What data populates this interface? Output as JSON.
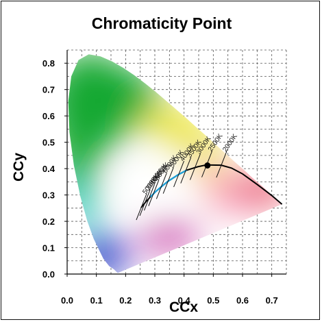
{
  "chart_data": {
    "type": "scatter",
    "title": "Chromaticity Point",
    "xlabel": "CCx",
    "ylabel": "CCy",
    "xlim": [
      0.0,
      0.75
    ],
    "ylim": [
      0.0,
      0.85
    ],
    "x_ticks": [
      "0.0",
      "0.1",
      "0.2",
      "0.3",
      "0.4",
      "0.5",
      "0.6",
      "0.7"
    ],
    "y_ticks": [
      "0.0",
      "0.1",
      "0.2",
      "0.3",
      "0.4",
      "0.5",
      "0.6",
      "0.7",
      "0.8"
    ],
    "grid": true,
    "spectral_locus": {
      "colors": {
        "green": "#0aa52a",
        "yellow": "#e9e21c",
        "red": "#e3122c",
        "blue": "#2337c4",
        "white": "#ffffff",
        "cyan": "#2ec9b9",
        "magenta": "#c640a6",
        "pink": "#f590b2",
        "peach": "#f9b791"
      }
    },
    "planckian_locus": {
      "color": "#000000",
      "highlight_color": "#1ea0d7",
      "points": [
        {
          "x": 0.253,
          "y": 0.252
        },
        {
          "x": 0.27,
          "y": 0.275
        },
        {
          "x": 0.285,
          "y": 0.293
        },
        {
          "x": 0.304,
          "y": 0.314
        },
        {
          "x": 0.323,
          "y": 0.332
        },
        {
          "x": 0.345,
          "y": 0.352
        },
        {
          "x": 0.38,
          "y": 0.377
        },
        {
          "x": 0.409,
          "y": 0.394
        },
        {
          "x": 0.447,
          "y": 0.407
        },
        {
          "x": 0.476,
          "y": 0.414
        },
        {
          "x": 0.527,
          "y": 0.413
        },
        {
          "x": 0.562,
          "y": 0.402
        },
        {
          "x": 0.6,
          "y": 0.38
        },
        {
          "x": 0.65,
          "y": 0.34
        },
        {
          "x": 0.7,
          "y": 0.298
        },
        {
          "x": 0.735,
          "y": 0.265
        }
      ],
      "highlight_range": [
        0.285,
        0.41
      ]
    },
    "cct_markers": [
      {
        "label": "50000K",
        "x": 0.253,
        "y": 0.252
      },
      {
        "label": "20000K",
        "x": 0.265,
        "y": 0.268
      },
      {
        "label": "10000K",
        "x": 0.28,
        "y": 0.288
      },
      {
        "label": "8000K",
        "x": 0.295,
        "y": 0.305
      },
      {
        "label": "6000K",
        "x": 0.322,
        "y": 0.332
      },
      {
        "label": "5000K",
        "x": 0.345,
        "y": 0.352
      },
      {
        "label": "4000K",
        "x": 0.381,
        "y": 0.377
      },
      {
        "label": "3500K",
        "x": 0.405,
        "y": 0.391
      },
      {
        "label": "3000K",
        "x": 0.437,
        "y": 0.404
      },
      {
        "label": "2500K",
        "x": 0.477,
        "y": 0.414
      },
      {
        "label": "2000K",
        "x": 0.527,
        "y": 0.413
      }
    ],
    "point": {
      "x": 0.48,
      "y": 0.412,
      "color": "#000000"
    }
  }
}
